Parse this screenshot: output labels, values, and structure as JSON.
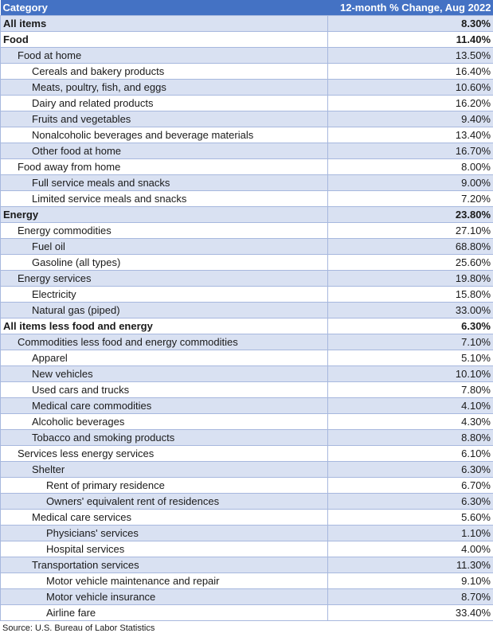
{
  "header": {
    "category": "Category",
    "change": "12-month % Change, Aug 2022"
  },
  "rows": [
    {
      "label": "All items",
      "value": "8.30%",
      "level": 0,
      "bold": true
    },
    {
      "label": "Food",
      "value": "11.40%",
      "level": 0,
      "bold": true
    },
    {
      "label": "Food at home",
      "value": "13.50%",
      "level": 1,
      "bold": false
    },
    {
      "label": "Cereals and bakery products",
      "value": "16.40%",
      "level": 2,
      "bold": false
    },
    {
      "label": "Meats, poultry, fish, and eggs",
      "value": "10.60%",
      "level": 2,
      "bold": false
    },
    {
      "label": "Dairy and related products",
      "value": "16.20%",
      "level": 2,
      "bold": false
    },
    {
      "label": "Fruits and vegetables",
      "value": "9.40%",
      "level": 2,
      "bold": false
    },
    {
      "label": "Nonalcoholic beverages and beverage materials",
      "value": "13.40%",
      "level": 2,
      "bold": false
    },
    {
      "label": "Other food at home",
      "value": "16.70%",
      "level": 2,
      "bold": false
    },
    {
      "label": "Food away from home",
      "value": "8.00%",
      "level": 1,
      "bold": false
    },
    {
      "label": "Full service meals and snacks",
      "value": "9.00%",
      "level": 2,
      "bold": false
    },
    {
      "label": "Limited service meals and snacks",
      "value": "7.20%",
      "level": 2,
      "bold": false
    },
    {
      "label": "Energy",
      "value": "23.80%",
      "level": 0,
      "bold": true
    },
    {
      "label": "Energy commodities",
      "value": "27.10%",
      "level": 1,
      "bold": false
    },
    {
      "label": "Fuel oil",
      "value": "68.80%",
      "level": 2,
      "bold": false
    },
    {
      "label": "Gasoline (all types)",
      "value": "25.60%",
      "level": 2,
      "bold": false
    },
    {
      "label": "Energy services",
      "value": "19.80%",
      "level": 1,
      "bold": false
    },
    {
      "label": "Electricity",
      "value": "15.80%",
      "level": 2,
      "bold": false
    },
    {
      "label": "Natural gas (piped)",
      "value": "33.00%",
      "level": 2,
      "bold": false
    },
    {
      "label": "All items less food and energy",
      "value": "6.30%",
      "level": 0,
      "bold": true
    },
    {
      "label": "Commodities less food and energy commodities",
      "value": "7.10%",
      "level": 1,
      "bold": false
    },
    {
      "label": "Apparel",
      "value": "5.10%",
      "level": 2,
      "bold": false
    },
    {
      "label": "New vehicles",
      "value": "10.10%",
      "level": 2,
      "bold": false
    },
    {
      "label": "Used cars and trucks",
      "value": "7.80%",
      "level": 2,
      "bold": false
    },
    {
      "label": "Medical care commodities",
      "value": "4.10%",
      "level": 2,
      "bold": false
    },
    {
      "label": "Alcoholic beverages",
      "value": "4.30%",
      "level": 2,
      "bold": false
    },
    {
      "label": "Tobacco and smoking products",
      "value": "8.80%",
      "level": 2,
      "bold": false
    },
    {
      "label": "Services less energy services",
      "value": "6.10%",
      "level": 1,
      "bold": false
    },
    {
      "label": "Shelter",
      "value": "6.30%",
      "level": 2,
      "bold": false
    },
    {
      "label": "Rent of primary residence",
      "value": "6.70%",
      "level": 3,
      "bold": false
    },
    {
      "label": "Owners' equivalent rent of residences",
      "value": "6.30%",
      "level": 3,
      "bold": false
    },
    {
      "label": "Medical care services",
      "value": "5.60%",
      "level": 2,
      "bold": false
    },
    {
      "label": "Physicians' services",
      "value": "1.10%",
      "level": 3,
      "bold": false
    },
    {
      "label": "Hospital services",
      "value": "4.00%",
      "level": 3,
      "bold": false
    },
    {
      "label": "Transportation services",
      "value": "11.30%",
      "level": 2,
      "bold": false
    },
    {
      "label": "Motor vehicle maintenance and repair",
      "value": "9.10%",
      "level": 3,
      "bold": false
    },
    {
      "label": "Motor vehicle insurance",
      "value": "8.70%",
      "level": 3,
      "bold": false
    },
    {
      "label": "Airline fare",
      "value": "33.40%",
      "level": 3,
      "bold": false
    }
  ],
  "source": "Source: U.S. Bureau of Labor Statistics"
}
